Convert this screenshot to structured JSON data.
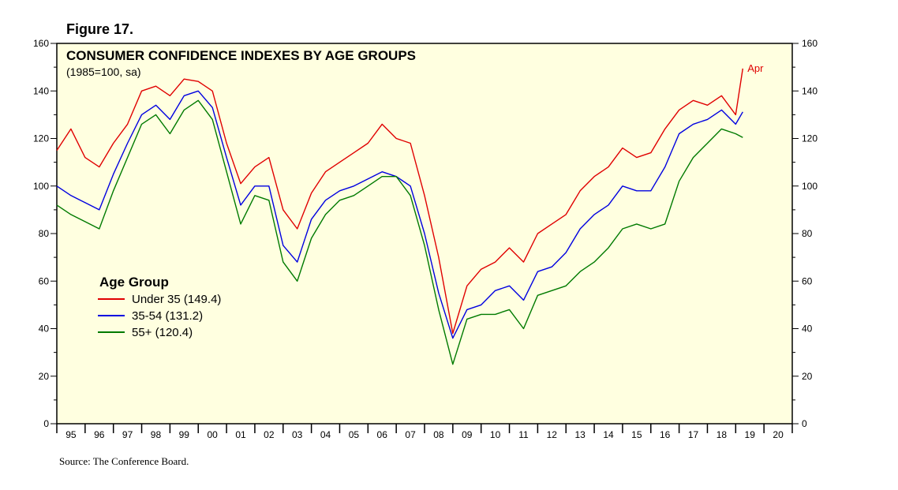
{
  "figure_label": "Figure 17.",
  "source": "Source: The Conference Board.",
  "chart_data": {
    "type": "line",
    "title": "CONSUMER CONFIDENCE INDEXES BY AGE GROUPS",
    "subtitle": "(1985=100, sa)",
    "ylim": [
      0,
      160
    ],
    "y_ticks": [
      0,
      20,
      40,
      60,
      80,
      100,
      120,
      140,
      160
    ],
    "xlim": [
      1995,
      2021
    ],
    "x_tick_labels": [
      "95",
      "96",
      "97",
      "98",
      "99",
      "00",
      "01",
      "02",
      "03",
      "04",
      "05",
      "06",
      "07",
      "08",
      "09",
      "10",
      "11",
      "12",
      "13",
      "14",
      "15",
      "16",
      "17",
      "18",
      "19",
      "20"
    ],
    "end_annotation": "Apr",
    "legend_title": "Age Group",
    "background": "#ffffe0",
    "series": [
      {
        "name": "Under 35 (149.4)",
        "color": "#e00000",
        "x": [
          1995.0,
          1995.5,
          1996.0,
          1996.5,
          1997.0,
          1997.5,
          1998.0,
          1998.5,
          1999.0,
          1999.5,
          2000.0,
          2000.5,
          2001.0,
          2001.5,
          2002.0,
          2002.5,
          2003.0,
          2003.5,
          2004.0,
          2004.5,
          2005.0,
          2005.5,
          2006.0,
          2006.5,
          2007.0,
          2007.5,
          2008.0,
          2008.5,
          2009.0,
          2009.5,
          2010.0,
          2010.5,
          2011.0,
          2011.5,
          2012.0,
          2012.5,
          2013.0,
          2013.5,
          2014.0,
          2014.5,
          2015.0,
          2015.5,
          2016.0,
          2016.5,
          2017.0,
          2017.5,
          2018.0,
          2018.5,
          2019.0,
          2019.25
        ],
        "values": [
          115,
          124,
          112,
          108,
          118,
          126,
          140,
          142,
          138,
          145,
          144,
          140,
          118,
          101,
          108,
          112,
          90,
          82,
          97,
          106,
          110,
          114,
          118,
          126,
          120,
          118,
          96,
          70,
          38,
          58,
          65,
          68,
          74,
          68,
          80,
          84,
          88,
          98,
          104,
          108,
          116,
          112,
          114,
          124,
          132,
          136,
          134,
          138,
          130,
          149.4
        ]
      },
      {
        "name": "35-54  (131.2)",
        "color": "#0000e0",
        "x": [
          1995.0,
          1995.5,
          1996.0,
          1996.5,
          1997.0,
          1997.5,
          1998.0,
          1998.5,
          1999.0,
          1999.5,
          2000.0,
          2000.5,
          2001.0,
          2001.5,
          2002.0,
          2002.5,
          2003.0,
          2003.5,
          2004.0,
          2004.5,
          2005.0,
          2005.5,
          2006.0,
          2006.5,
          2007.0,
          2007.5,
          2008.0,
          2008.5,
          2009.0,
          2009.5,
          2010.0,
          2010.5,
          2011.0,
          2011.5,
          2012.0,
          2012.5,
          2013.0,
          2013.5,
          2014.0,
          2014.5,
          2015.0,
          2015.5,
          2016.0,
          2016.5,
          2017.0,
          2017.5,
          2018.0,
          2018.5,
          2019.0,
          2019.25
        ],
        "values": [
          100,
          96,
          93,
          90,
          105,
          118,
          130,
          134,
          128,
          138,
          140,
          133,
          112,
          92,
          100,
          100,
          75,
          68,
          86,
          94,
          98,
          100,
          103,
          106,
          104,
          100,
          80,
          55,
          36,
          48,
          50,
          56,
          58,
          52,
          64,
          66,
          72,
          82,
          88,
          92,
          100,
          98,
          98,
          108,
          122,
          126,
          128,
          132,
          126,
          131.2
        ]
      },
      {
        "name": "55+ (120.4)",
        "color": "#007a00",
        "x": [
          1995.0,
          1995.5,
          1996.0,
          1996.5,
          1997.0,
          1997.5,
          1998.0,
          1998.5,
          1999.0,
          1999.5,
          2000.0,
          2000.5,
          2001.0,
          2001.5,
          2002.0,
          2002.5,
          2003.0,
          2003.5,
          2004.0,
          2004.5,
          2005.0,
          2005.5,
          2006.0,
          2006.5,
          2007.0,
          2007.5,
          2008.0,
          2008.5,
          2009.0,
          2009.5,
          2010.0,
          2010.5,
          2011.0,
          2011.5,
          2012.0,
          2012.5,
          2013.0,
          2013.5,
          2014.0,
          2014.5,
          2015.0,
          2015.5,
          2016.0,
          2016.5,
          2017.0,
          2017.5,
          2018.0,
          2018.5,
          2019.0,
          2019.25
        ],
        "values": [
          92,
          88,
          85,
          82,
          98,
          112,
          126,
          130,
          122,
          132,
          136,
          128,
          106,
          84,
          96,
          94,
          68,
          60,
          78,
          88,
          94,
          96,
          100,
          104,
          104,
          96,
          75,
          48,
          25,
          44,
          46,
          46,
          48,
          40,
          54,
          56,
          58,
          64,
          68,
          74,
          82,
          84,
          82,
          84,
          102,
          112,
          118,
          124,
          122,
          120.4
        ]
      }
    ]
  }
}
